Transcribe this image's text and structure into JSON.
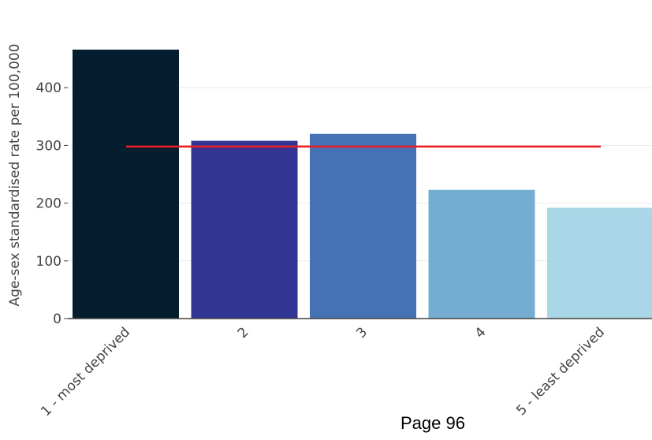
{
  "chart_data": {
    "type": "bar",
    "categories": [
      "1 - most deprived",
      "2",
      "3",
      "4",
      "5 - least deprived"
    ],
    "values": [
      466,
      308,
      320,
      223,
      192
    ],
    "colors": [
      "#041e30",
      "#333593",
      "#4472b5",
      "#75acd1",
      "#aad7e7"
    ],
    "ylabel": "Age-sex standardised rate per 100,000",
    "ylim": [
      0,
      450
    ],
    "yticks": [
      0,
      100,
      200,
      300,
      400
    ],
    "reference_line": {
      "value": 298,
      "color": "#ee1c24"
    },
    "grid": true
  },
  "footer": {
    "page_label": "Page 96"
  }
}
